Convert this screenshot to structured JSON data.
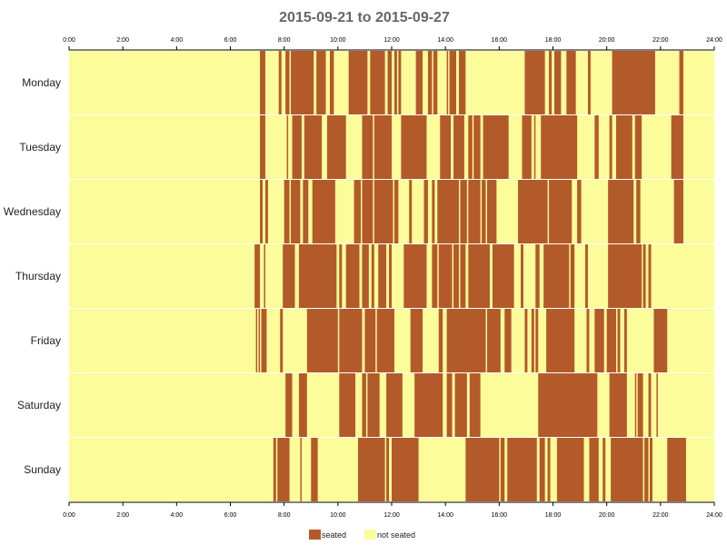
{
  "chart_data": {
    "type": "timeline",
    "title": "2015-09-21 to 2015-09-27",
    "x_ticks": [
      "0:00",
      "2:00",
      "4:00",
      "6:00",
      "8:00",
      "10:00",
      "12:00",
      "14:00",
      "16:00",
      "18:00",
      "20:00",
      "22:00",
      "24:00"
    ],
    "xlim_hours": [
      0,
      24
    ],
    "categories": [
      "Monday",
      "Tuesday",
      "Wednesday",
      "Thursday",
      "Friday",
      "Saturday",
      "Sunday"
    ],
    "legend": [
      {
        "label": "seated",
        "color": "#b35a2a"
      },
      {
        "label": "not seated",
        "color": "#fcfc9a"
      }
    ],
    "series": {
      "seated_intervals_hours": [
        [
          [
            7.1,
            7.3
          ],
          [
            7.8,
            7.9
          ],
          [
            8.05,
            8.2
          ],
          [
            8.25,
            9.1
          ],
          [
            9.2,
            9.55
          ],
          [
            9.7,
            9.85
          ],
          [
            10.4,
            11.1
          ],
          [
            11.2,
            11.75
          ],
          [
            11.85,
            12.0
          ],
          [
            12.1,
            12.2
          ],
          [
            12.25,
            12.35
          ],
          [
            12.9,
            13.15
          ],
          [
            13.35,
            13.5
          ],
          [
            13.55,
            13.7
          ],
          [
            14.05,
            14.1
          ],
          [
            14.15,
            14.4
          ],
          [
            14.5,
            14.75
          ],
          [
            16.95,
            17.7
          ],
          [
            17.85,
            17.95
          ],
          [
            18.05,
            18.3
          ],
          [
            18.5,
            18.85
          ],
          [
            19.3,
            19.4
          ],
          [
            20.2,
            21.8
          ],
          [
            22.7,
            22.85
          ]
        ],
        [
          [
            7.1,
            7.3
          ],
          [
            8.1,
            8.15
          ],
          [
            8.3,
            8.65
          ],
          [
            8.75,
            9.4
          ],
          [
            9.6,
            10.3
          ],
          [
            10.9,
            11.3
          ],
          [
            11.35,
            12.0
          ],
          [
            12.35,
            13.3
          ],
          [
            13.8,
            14.2
          ],
          [
            14.3,
            14.7
          ],
          [
            14.85,
            15.0
          ],
          [
            15.05,
            15.3
          ],
          [
            15.4,
            16.35
          ],
          [
            16.85,
            17.2
          ],
          [
            17.3,
            17.35
          ],
          [
            17.55,
            18.9
          ],
          [
            19.55,
            19.7
          ],
          [
            20.1,
            20.2
          ],
          [
            20.35,
            20.95
          ],
          [
            21.05,
            21.3
          ],
          [
            22.4,
            22.85
          ]
        ],
        [
          [
            7.1,
            7.2
          ],
          [
            7.3,
            7.4
          ],
          [
            8.0,
            8.2
          ],
          [
            8.25,
            8.6
          ],
          [
            8.7,
            8.9
          ],
          [
            9.05,
            9.9
          ],
          [
            10.6,
            10.85
          ],
          [
            10.9,
            11.3
          ],
          [
            11.35,
            12.05
          ],
          [
            12.1,
            12.25
          ],
          [
            12.65,
            12.75
          ],
          [
            13.2,
            13.35
          ],
          [
            13.5,
            13.6
          ],
          [
            13.7,
            14.5
          ],
          [
            14.55,
            14.8
          ],
          [
            14.85,
            15.3
          ],
          [
            15.35,
            15.5
          ],
          [
            15.55,
            15.9
          ],
          [
            16.7,
            17.8
          ],
          [
            17.85,
            18.7
          ],
          [
            18.9,
            19.05
          ],
          [
            20.05,
            21.0
          ],
          [
            21.1,
            21.25
          ],
          [
            22.5,
            22.85
          ]
        ],
        [
          [
            6.9,
            7.1
          ],
          [
            7.25,
            7.3
          ],
          [
            7.95,
            8.4
          ],
          [
            8.55,
            9.95
          ],
          [
            10.05,
            10.15
          ],
          [
            10.3,
            10.8
          ],
          [
            10.9,
            11.15
          ],
          [
            11.25,
            11.35
          ],
          [
            11.5,
            11.8
          ],
          [
            11.9,
            12.0
          ],
          [
            12.45,
            13.3
          ],
          [
            13.5,
            13.7
          ],
          [
            13.75,
            14.25
          ],
          [
            14.3,
            14.5
          ],
          [
            14.55,
            14.75
          ],
          [
            14.85,
            15.65
          ],
          [
            15.75,
            16.55
          ],
          [
            16.8,
            16.9
          ],
          [
            17.35,
            17.5
          ],
          [
            17.65,
            18.6
          ],
          [
            18.65,
            18.8
          ],
          [
            19.2,
            19.3
          ],
          [
            20.05,
            21.3
          ],
          [
            21.35,
            21.45
          ],
          [
            21.55,
            21.65
          ]
        ],
        [
          [
            6.95,
            7.0
          ],
          [
            7.05,
            7.1
          ],
          [
            7.15,
            7.35
          ],
          [
            7.85,
            7.95
          ],
          [
            8.85,
            10.0
          ],
          [
            10.05,
            10.9
          ],
          [
            11.0,
            11.4
          ],
          [
            11.45,
            12.1
          ],
          [
            12.7,
            13.15
          ],
          [
            13.75,
            13.9
          ],
          [
            14.05,
            15.5
          ],
          [
            15.55,
            16.05
          ],
          [
            16.2,
            16.45
          ],
          [
            16.95,
            17.05
          ],
          [
            17.2,
            17.3
          ],
          [
            17.35,
            17.45
          ],
          [
            17.75,
            18.8
          ],
          [
            19.25,
            19.35
          ],
          [
            19.55,
            19.9
          ],
          [
            20.0,
            20.35
          ],
          [
            20.4,
            20.5
          ],
          [
            20.65,
            20.75
          ],
          [
            21.75,
            22.25
          ]
        ],
        [
          [
            8.05,
            8.3
          ],
          [
            8.55,
            8.85
          ],
          [
            10.05,
            10.65
          ],
          [
            10.9,
            11.05
          ],
          [
            11.1,
            11.55
          ],
          [
            11.8,
            12.4
          ],
          [
            12.85,
            13.9
          ],
          [
            14.05,
            14.25
          ],
          [
            14.35,
            14.8
          ],
          [
            14.9,
            15.3
          ],
          [
            17.45,
            19.65
          ],
          [
            20.1,
            20.75
          ],
          [
            21.05,
            21.1
          ],
          [
            21.15,
            21.35
          ],
          [
            21.55,
            21.65
          ],
          [
            21.85,
            21.9
          ]
        ],
        [
          [
            7.6,
            7.7
          ],
          [
            7.75,
            8.2
          ],
          [
            8.6,
            8.65
          ],
          [
            9.0,
            9.25
          ],
          [
            10.75,
            11.75
          ],
          [
            11.8,
            11.9
          ],
          [
            12.0,
            13.0
          ],
          [
            14.75,
            16.0
          ],
          [
            16.05,
            16.2
          ],
          [
            16.3,
            17.4
          ],
          [
            17.5,
            17.7
          ],
          [
            17.8,
            17.9
          ],
          [
            18.15,
            19.15
          ],
          [
            19.35,
            19.7
          ],
          [
            19.85,
            19.95
          ],
          [
            20.15,
            21.35
          ],
          [
            21.4,
            21.55
          ],
          [
            21.6,
            21.7
          ],
          [
            22.25,
            22.95
          ]
        ]
      ]
    }
  }
}
